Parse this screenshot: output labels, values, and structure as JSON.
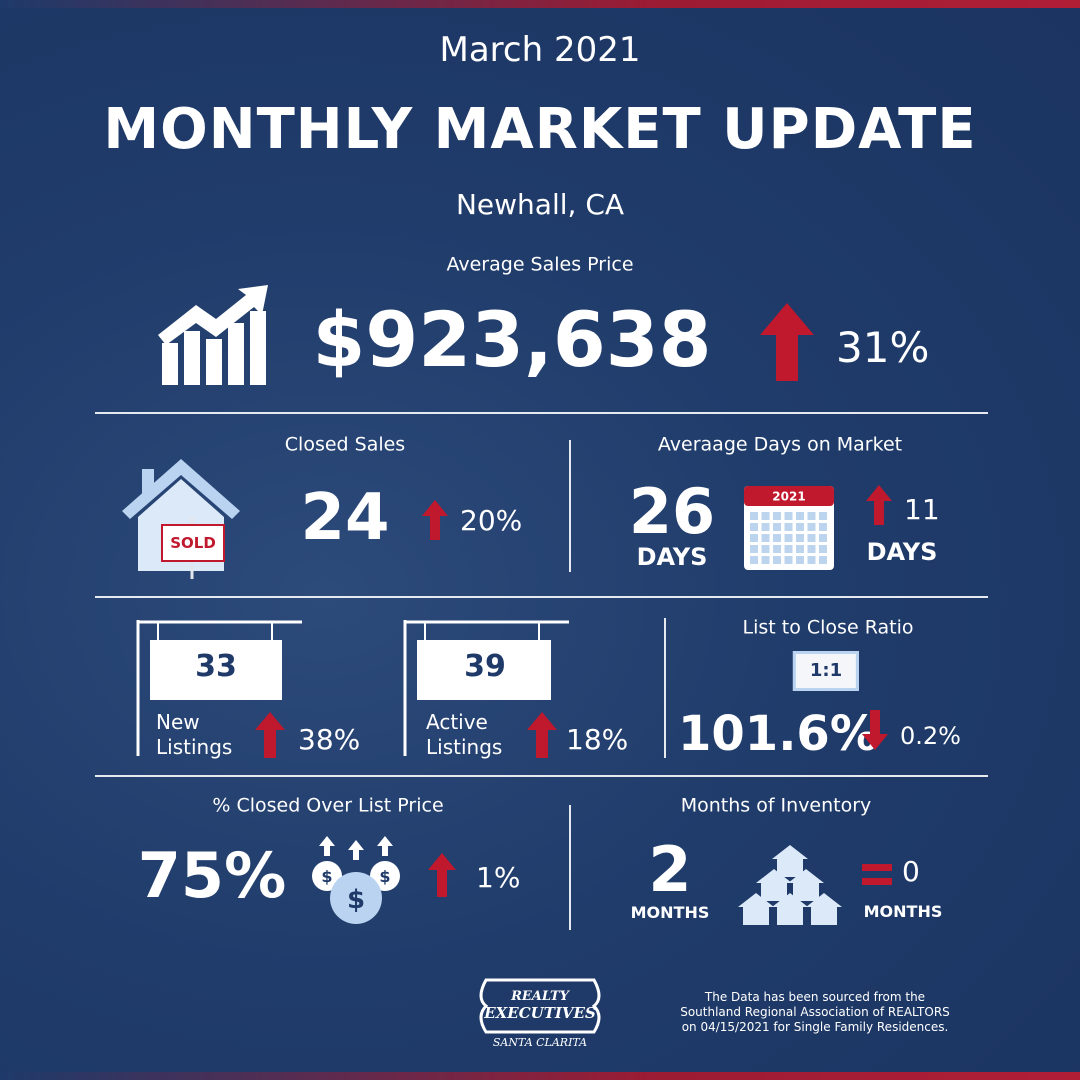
{
  "header": {
    "date": "March 2021",
    "title": "MONTHLY MARKET UPDATE",
    "location": "Newhall, CA"
  },
  "average_sales_price": {
    "label": "Average Sales Price",
    "value": "$923,638",
    "change": "31%"
  },
  "closed_sales": {
    "label": "Closed Sales",
    "sign": "SOLD",
    "value": "24",
    "change": "20%"
  },
  "days_on_market": {
    "label": "Averaage Days on Market",
    "value": "26",
    "unit": "DAYS",
    "calendar_year": "2021",
    "change": "11",
    "change_unit": "DAYS"
  },
  "new_listings": {
    "value": "33",
    "label_lines": [
      "New",
      "Listings"
    ],
    "change": "38%"
  },
  "active_listings": {
    "value": "39",
    "label_lines": [
      "Active",
      "Listings"
    ],
    "change": "18%"
  },
  "list_to_close": {
    "label": "List to Close Ratio",
    "badge": "1:1",
    "value": "101.6%",
    "change": "0.2%"
  },
  "closed_over_list": {
    "label": "% Closed Over List Price",
    "value": "75%",
    "change": "1%"
  },
  "months_of_inventory": {
    "label": "Months of Inventory",
    "value": "2",
    "unit": "MONTHS",
    "change": "0",
    "change_unit": "MONTHS"
  },
  "logo": {
    "line1": "REALTY",
    "line2": "EXECUTIVES",
    "line3": "SANTA CLARITA"
  },
  "footer": {
    "lines": [
      "The Data has been sourced from the",
      "Southland Regional Association of REALTORS",
      "on 04/15/2021 for Single Family Residences."
    ]
  }
}
